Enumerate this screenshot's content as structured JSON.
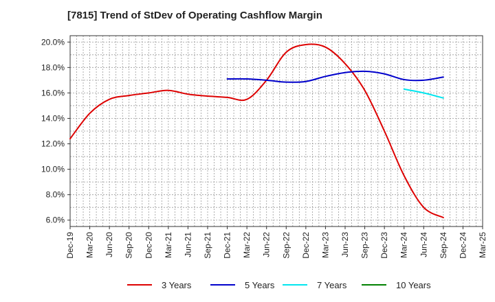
{
  "chart_data": {
    "type": "line",
    "title": "[7815]  Trend of StDev of Operating Cashflow Margin",
    "xlabel": "",
    "ylabel": "",
    "x_ticks": [
      "Dec-19",
      "Mar-20",
      "Jun-20",
      "Sep-20",
      "Dec-20",
      "Mar-21",
      "Jun-21",
      "Sep-21",
      "Dec-21",
      "Mar-22",
      "Jun-22",
      "Sep-22",
      "Dec-22",
      "Mar-23",
      "Jun-23",
      "Sep-23",
      "Dec-23",
      "Mar-24",
      "Jun-24",
      "Sep-24",
      "Dec-24",
      "Mar-25"
    ],
    "y_ticks": [
      "6.0%",
      "8.0%",
      "10.0%",
      "12.0%",
      "14.0%",
      "16.0%",
      "18.0%",
      "20.0%"
    ],
    "ylim": [
      5.5,
      20.5
    ],
    "grid": true,
    "legend_position": "bottom",
    "series": [
      {
        "name": "3 Years",
        "color": "#dd0000",
        "points": [
          [
            "Dec-19",
            12.4
          ],
          [
            "Mar-20",
            14.4
          ],
          [
            "Jun-20",
            15.5
          ],
          [
            "Sep-20",
            15.8
          ],
          [
            "Dec-20",
            16.0
          ],
          [
            "Mar-21",
            16.2
          ],
          [
            "Jun-21",
            15.9
          ],
          [
            "Sep-21",
            15.75
          ],
          [
            "Dec-21",
            15.65
          ],
          [
            "Mar-22",
            15.5
          ],
          [
            "Jun-22",
            17.0
          ],
          [
            "Sep-22",
            19.2
          ],
          [
            "Dec-22",
            19.8
          ],
          [
            "Mar-23",
            19.6
          ],
          [
            "Jun-23",
            18.3
          ],
          [
            "Sep-23",
            16.2
          ],
          [
            "Dec-23",
            13.0
          ],
          [
            "Mar-24",
            9.5
          ],
          [
            "Jun-24",
            7.0
          ],
          [
            "Sep-24",
            6.2
          ]
        ]
      },
      {
        "name": "5 Years",
        "color": "#0000cc",
        "points": [
          [
            "Dec-21",
            17.1
          ],
          [
            "Mar-22",
            17.1
          ],
          [
            "Jun-22",
            17.0
          ],
          [
            "Sep-22",
            16.85
          ],
          [
            "Dec-22",
            16.9
          ],
          [
            "Mar-23",
            17.3
          ],
          [
            "Jun-23",
            17.6
          ],
          [
            "Sep-23",
            17.7
          ],
          [
            "Dec-23",
            17.5
          ],
          [
            "Mar-24",
            17.05
          ],
          [
            "Jun-24",
            17.0
          ],
          [
            "Sep-24",
            17.25
          ]
        ]
      },
      {
        "name": "7 Years",
        "color": "#00e5ee",
        "points": [
          [
            "Mar-24",
            16.3
          ],
          [
            "Jun-24",
            16.0
          ],
          [
            "Sep-24",
            15.6
          ]
        ]
      },
      {
        "name": "10 Years",
        "color": "#008000",
        "points": []
      }
    ]
  }
}
